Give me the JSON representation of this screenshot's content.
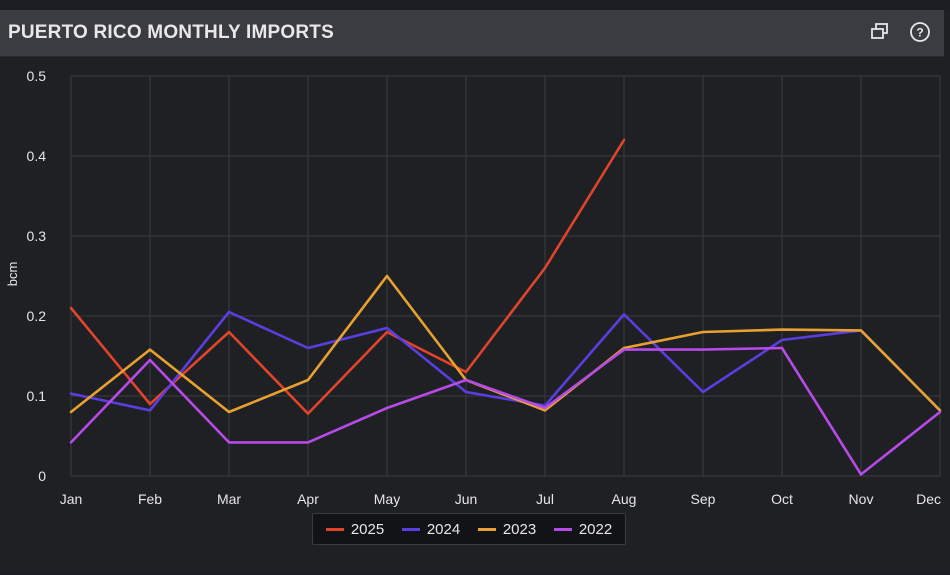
{
  "header": {
    "title": "PUERTO RICO MONTHLY IMPORTS",
    "icons": [
      "popout-icon",
      "help-icon"
    ]
  },
  "colors": {
    "background": "#1f2024",
    "header": "#3a3c41",
    "grid": "#3b3c40",
    "axis_text": "#e6e6e6"
  },
  "chart_data": {
    "type": "line",
    "title": "PUERTO RICO MONTHLY IMPORTS",
    "xlabel": "",
    "ylabel": "bcm",
    "categories": [
      "Jan",
      "Feb",
      "Mar",
      "Apr",
      "May",
      "Jun",
      "Jul",
      "Aug",
      "Sep",
      "Oct",
      "Nov",
      "Dec"
    ],
    "ylim": [
      0,
      0.5
    ],
    "yticks": [
      "0",
      "0.1",
      "0.2",
      "0.3",
      "0.4",
      "0.5"
    ],
    "grid": true,
    "legend_position": "bottom-center",
    "series": [
      {
        "name": "2025",
        "color": "#e0452b",
        "values": [
          0.21,
          0.09,
          0.18,
          0.078,
          0.18,
          0.13,
          0.26,
          0.42,
          null,
          null,
          null,
          null
        ]
      },
      {
        "name": "2024",
        "color": "#5a3ee0",
        "values": [
          0.103,
          0.082,
          0.205,
          0.16,
          0.185,
          0.105,
          0.088,
          0.202,
          0.105,
          0.17,
          0.182,
          0.082
        ]
      },
      {
        "name": "2023",
        "color": "#e8a130",
        "values": [
          0.08,
          0.158,
          0.08,
          0.12,
          0.25,
          0.12,
          0.082,
          0.16,
          0.18,
          0.183,
          0.182,
          0.082
        ]
      },
      {
        "name": "2022",
        "color": "#b84ae8",
        "values": [
          0.042,
          0.145,
          0.042,
          0.042,
          0.085,
          0.12,
          0.085,
          0.158,
          0.158,
          0.16,
          0.002,
          0.08
        ]
      }
    ]
  }
}
